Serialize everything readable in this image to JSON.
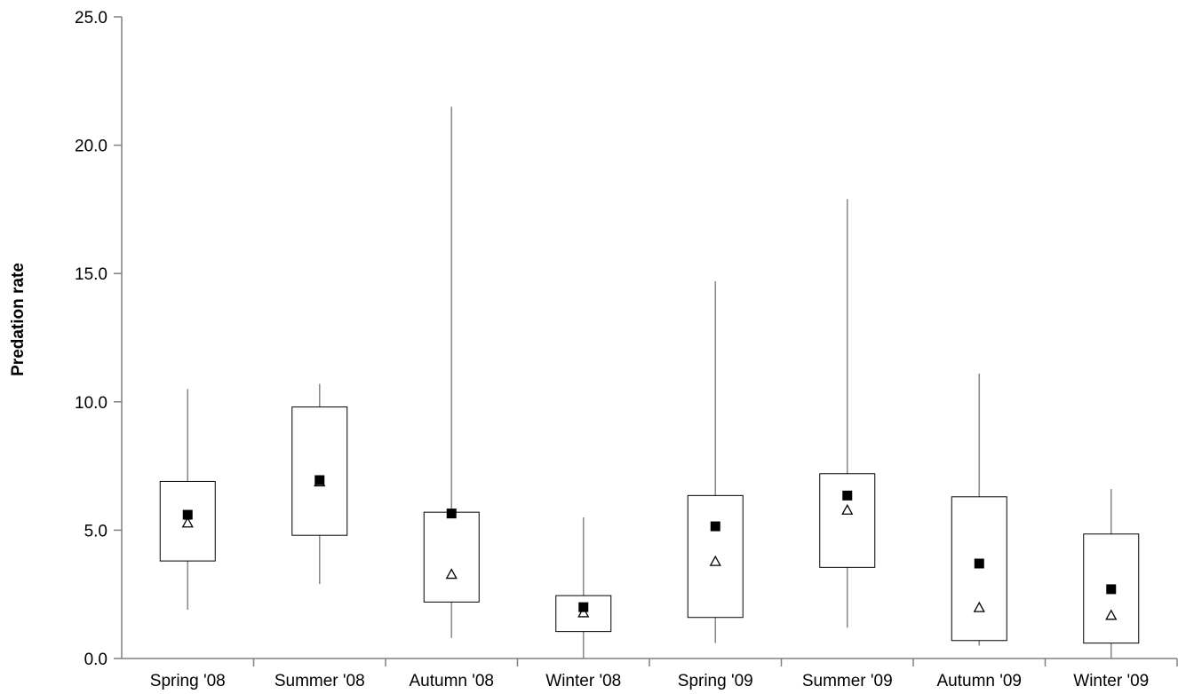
{
  "chart_data": {
    "type": "box",
    "title": "",
    "xlabel": "",
    "ylabel": "Predation rate",
    "ylim": [
      0,
      25
    ],
    "yticks": [
      "0.0",
      "5.0",
      "10.0",
      "15.0",
      "20.0",
      "25.0"
    ],
    "categories": [
      "Spring '08",
      "Summer '08",
      "Autumn '08",
      "Winter '08",
      "Spring '09",
      "Summer '09",
      "Autumn '09",
      "Winter '09"
    ],
    "boxes": [
      {
        "min": 1.9,
        "q1": 3.8,
        "q3": 6.9,
        "max": 10.5,
        "mean": 5.6,
        "median": 5.3
      },
      {
        "min": 2.9,
        "q1": 4.8,
        "q3": 9.8,
        "max": 10.7,
        "mean": 6.95,
        "median": 6.9
      },
      {
        "min": 0.8,
        "q1": 2.2,
        "q3": 5.7,
        "max": 21.5,
        "mean": 5.65,
        "median": 3.3
      },
      {
        "min": 0.0,
        "q1": 1.05,
        "q3": 2.45,
        "max": 5.5,
        "mean": 2.0,
        "median": 1.8
      },
      {
        "min": 0.6,
        "q1": 1.6,
        "q3": 6.35,
        "max": 14.7,
        "mean": 5.15,
        "median": 3.8
      },
      {
        "min": 1.2,
        "q1": 3.55,
        "q3": 7.2,
        "max": 17.9,
        "mean": 6.35,
        "median": 5.8
      },
      {
        "min": 0.5,
        "q1": 0.7,
        "q3": 6.3,
        "max": 11.1,
        "mean": 3.7,
        "median": 2.0
      },
      {
        "min": 0.0,
        "q1": 0.6,
        "q3": 4.85,
        "max": 6.6,
        "mean": 2.7,
        "median": 1.7
      }
    ],
    "markers": {
      "mean": "filled-square",
      "median": "open-triangle"
    },
    "grid": false,
    "legend": "none",
    "colors": {
      "box_stroke": "#000000",
      "whisker": "#8c8c8c",
      "axis": "#808080",
      "mean_marker": "#000000",
      "median_marker": "#000000"
    }
  }
}
